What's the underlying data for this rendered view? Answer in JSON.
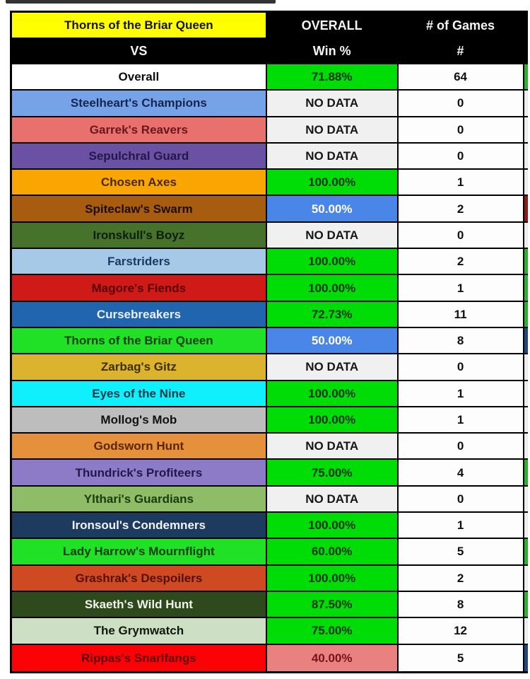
{
  "header": {
    "team": "Thorns of the Briar Queen",
    "vs_label": "VS",
    "overall_line1": "OVERALL",
    "overall_line2": "Win %",
    "games_line1": "# of Games",
    "games_line2": "#"
  },
  "colors": {
    "header_highlight": "#ffff00",
    "header_bg": "#000000",
    "win_green": "#00dc06",
    "win_blue": "#4a86e8",
    "win_salmon": "#e98181",
    "no_data_bg": "#f0f0f0",
    "grid": "#000000"
  },
  "rows": [
    {
      "name": "Overall",
      "bg": "#ffffff",
      "fg": "#0d0d0d",
      "win": "71.88%",
      "win_type": "green",
      "games": "64",
      "strip": "#2fae2f"
    },
    {
      "name": "Steelheart's Champions",
      "bg": "#76a3e8",
      "fg": "#16254f",
      "win": "NO DATA",
      "win_type": "nodata",
      "games": "0",
      "strip": "#ececec"
    },
    {
      "name": "Garrek's Reavers",
      "bg": "#e8716e",
      "fg": "#6b151c",
      "win": "NO DATA",
      "win_type": "nodata",
      "games": "0",
      "strip": "#ececec"
    },
    {
      "name": "Sepulchral Guard",
      "bg": "#6a51a3",
      "fg": "#221849",
      "win": "NO DATA",
      "win_type": "nodata",
      "games": "0",
      "strip": "#ececec"
    },
    {
      "name": "Chosen Axes",
      "bg": "#f9a602",
      "fg": "#4a2800",
      "win": "100.00%",
      "win_type": "green",
      "games": "1",
      "strip": "#ececec"
    },
    {
      "name": "Spiteclaw's Swarm",
      "bg": "#a85c10",
      "fg": "#1c0e00",
      "win": "50.00%",
      "win_type": "blue",
      "games": "2",
      "strip": "#8b1a1a"
    },
    {
      "name": "Ironskull's Boyz",
      "bg": "#47722c",
      "fg": "#0d1f05",
      "win": "NO DATA",
      "win_type": "nodata",
      "games": "0",
      "strip": "#ececec"
    },
    {
      "name": "Farstriders",
      "bg": "#a6c9e8",
      "fg": "#173c63",
      "win": "100.00%",
      "win_type": "green",
      "games": "2",
      "strip": "#2fae2f"
    },
    {
      "name": "Magore's Fiends",
      "bg": "#d01a18",
      "fg": "#560004",
      "win": "100.00%",
      "win_type": "green",
      "games": "1",
      "strip": "#2fae2f"
    },
    {
      "name": "Cursebreakers",
      "bg": "#2265af",
      "fg": "#eaf0f8",
      "win": "72.73%",
      "win_type": "green",
      "games": "11",
      "strip": "#2fae2f"
    },
    {
      "name": "Thorns of the Briar Queen",
      "bg": "#21e126",
      "fg": "#073f07",
      "win": "50.00%",
      "win_type": "blue",
      "games": "8",
      "strip": "#24467e"
    },
    {
      "name": "Zarbag's Gitz",
      "bg": "#dcb32f",
      "fg": "#3f3000",
      "win": "NO DATA",
      "win_type": "nodata",
      "games": "0",
      "strip": "#ececec"
    },
    {
      "name": "Eyes of the Nine",
      "bg": "#0ff0fc",
      "fg": "#123a4a",
      "win": "100.00%",
      "win_type": "green",
      "games": "1",
      "strip": "#ececec"
    },
    {
      "name": "Mollog's Mob",
      "bg": "#bdbdbd",
      "fg": "#111111",
      "win": "100.00%",
      "win_type": "green",
      "games": "1",
      "strip": "#ececec"
    },
    {
      "name": "Godsworn Hunt",
      "bg": "#e5913c",
      "fg": "#5e2500",
      "win": "NO DATA",
      "win_type": "nodata",
      "games": "0",
      "strip": "#ececec"
    },
    {
      "name": "Thundrick's Profiteers",
      "bg": "#8d7bc7",
      "fg": "#221849",
      "win": "75.00%",
      "win_type": "green",
      "games": "4",
      "strip": "#2fae2f"
    },
    {
      "name": "Ylthari's Guardians",
      "bg": "#8fbc66",
      "fg": "#1d3a0a",
      "win": "NO DATA",
      "win_type": "nodata",
      "games": "0",
      "strip": "#ececec"
    },
    {
      "name": "Ironsoul's Condemners",
      "bg": "#1d3a5f",
      "fg": "#f0f4fa",
      "win": "100.00%",
      "win_type": "green",
      "games": "1",
      "strip": "#ececec"
    },
    {
      "name": "Lady Harrow's Mournflight",
      "bg": "#21e126",
      "fg": "#073f07",
      "win": "60.00%",
      "win_type": "green",
      "games": "5",
      "strip": "#2fae2f"
    },
    {
      "name": "Grashrak's Despoilers",
      "bg": "#cf4a22",
      "fg": "#531005",
      "win": "100.00%",
      "win_type": "green",
      "games": "2",
      "strip": "#ececec"
    },
    {
      "name": "Skaeth's Wild Hunt",
      "bg": "#2e4a1c",
      "fg": "#f0f4ea",
      "win": "87.50%",
      "win_type": "green",
      "games": "8",
      "strip": "#2fae2f"
    },
    {
      "name": "The Grymwatch",
      "bg": "#cde0c4",
      "fg": "#101810",
      "win": "75.00%",
      "win_type": "green",
      "games": "12",
      "strip": "#ececec"
    },
    {
      "name": "Rippas's Snarlfangs",
      "bg": "#fb0207",
      "fg": "#600003",
      "win": "40.00%",
      "win_type": "salmon",
      "games": "5",
      "strip": "#24467e"
    }
  ]
}
